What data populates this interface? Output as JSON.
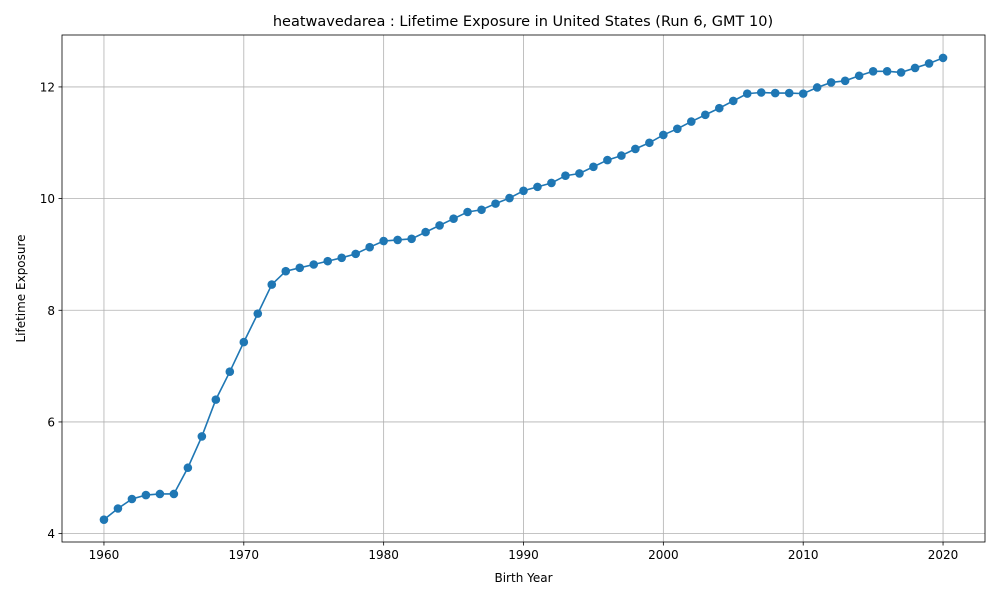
{
  "chart_data": {
    "type": "line",
    "title": "heatwavedarea : Lifetime Exposure in United States (Run 6, GMT 10)",
    "xlabel": "Birth Year",
    "ylabel": "Lifetime Exposure",
    "xlim": [
      1957,
      2023
    ],
    "ylim": [
      3.85,
      12.93
    ],
    "xticks": [
      1960,
      1970,
      1980,
      1990,
      2000,
      2010,
      2020
    ],
    "yticks": [
      4,
      6,
      8,
      10,
      12
    ],
    "grid": true,
    "line_color": "#1f77b4",
    "marker": "circle",
    "x": [
      1960,
      1961,
      1962,
      1963,
      1964,
      1965,
      1966,
      1967,
      1968,
      1969,
      1970,
      1971,
      1972,
      1973,
      1974,
      1975,
      1976,
      1977,
      1978,
      1979,
      1980,
      1981,
      1982,
      1983,
      1984,
      1985,
      1986,
      1987,
      1988,
      1989,
      1990,
      1991,
      1992,
      1993,
      1994,
      1995,
      1996,
      1997,
      1998,
      1999,
      2000,
      2001,
      2002,
      2003,
      2004,
      2005,
      2006,
      2007,
      2008,
      2009,
      2010,
      2011,
      2012,
      2013,
      2014,
      2015,
      2016,
      2017,
      2018,
      2019,
      2020
    ],
    "y": [
      4.25,
      4.45,
      4.62,
      4.69,
      4.71,
      4.71,
      5.18,
      5.74,
      6.4,
      6.9,
      7.43,
      7.94,
      8.46,
      8.7,
      8.76,
      8.82,
      8.88,
      8.94,
      9.01,
      9.13,
      9.24,
      9.26,
      9.28,
      9.4,
      9.52,
      9.64,
      9.76,
      9.8,
      9.91,
      10.01,
      10.14,
      10.21,
      10.28,
      10.41,
      10.45,
      10.57,
      10.69,
      10.77,
      10.89,
      11.0,
      11.14,
      11.25,
      11.38,
      11.5,
      11.62,
      11.75,
      11.88,
      11.9,
      11.89,
      11.89,
      11.88,
      11.99,
      12.08,
      12.11,
      12.2,
      12.28,
      12.28,
      12.26,
      12.34,
      12.42,
      12.52
    ]
  }
}
